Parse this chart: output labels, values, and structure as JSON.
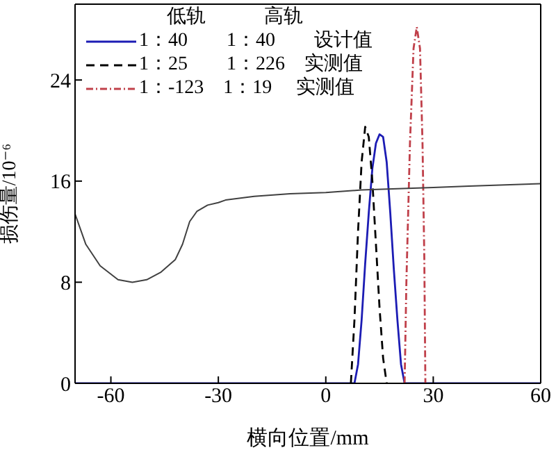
{
  "chart_data": {
    "type": "line",
    "xlabel": "横向位置/mm",
    "ylabel": "损伤量/10⁻⁶",
    "legend_title": "低轨　　　高轨",
    "legend": "top left",
    "xlim": [
      -70,
      60
    ],
    "xticks": [
      -60,
      -30,
      0,
      30,
      60
    ],
    "ylim": [
      0,
      30
    ],
    "yticks": [
      0,
      8,
      16,
      24
    ],
    "series": [
      {
        "name": "1：40　　1：40　　设计值",
        "color": "#1c1cb4",
        "line_style": "solid",
        "x": [
          -70,
          8,
          9,
          10,
          11,
          12,
          13,
          14,
          15,
          16,
          17,
          18,
          19,
          20,
          21,
          22,
          60
        ],
        "values": [
          0,
          0,
          1.5,
          5,
          9.5,
          13.5,
          17,
          19,
          19.7,
          19.5,
          17.5,
          13.5,
          9,
          5,
          1.5,
          0,
          0
        ]
      },
      {
        "name": "1：25　　1：226　实测值",
        "color": "#000000",
        "line_style": "dashed",
        "x": [
          7,
          8,
          9,
          10,
          11,
          12,
          13,
          14,
          15,
          16,
          17
        ],
        "values": [
          0,
          5,
          12,
          17.5,
          20.3,
          19.5,
          16,
          11,
          6,
          2,
          0
        ]
      },
      {
        "name": "1：-123　1：19　 实测值",
        "color": "#c0404a",
        "line_style": "dotted",
        "x": [
          22,
          22.5,
          23.5,
          24.5,
          25.4,
          26.3,
          27,
          27.5,
          27.8
        ],
        "values": [
          0,
          8,
          19,
          26.5,
          28.2,
          26.5,
          19,
          10,
          0
        ]
      },
      {
        "color": "#404040",
        "line_style": "solid",
        "x": [
          -70,
          -67,
          -63,
          -58,
          -54,
          -50,
          -46,
          -42,
          -40,
          -38,
          -36,
          -33,
          -30,
          -28,
          -20,
          -10,
          0,
          10,
          20,
          30,
          40,
          50,
          60
        ],
        "values": [
          13.4,
          11,
          9.3,
          8.2,
          8.0,
          8.2,
          8.8,
          9.8,
          11,
          12.8,
          13.6,
          14.1,
          14.3,
          14.5,
          14.8,
          15.0,
          15.1,
          15.3,
          15.4,
          15.5,
          15.6,
          15.7,
          15.8
        ]
      }
    ]
  }
}
